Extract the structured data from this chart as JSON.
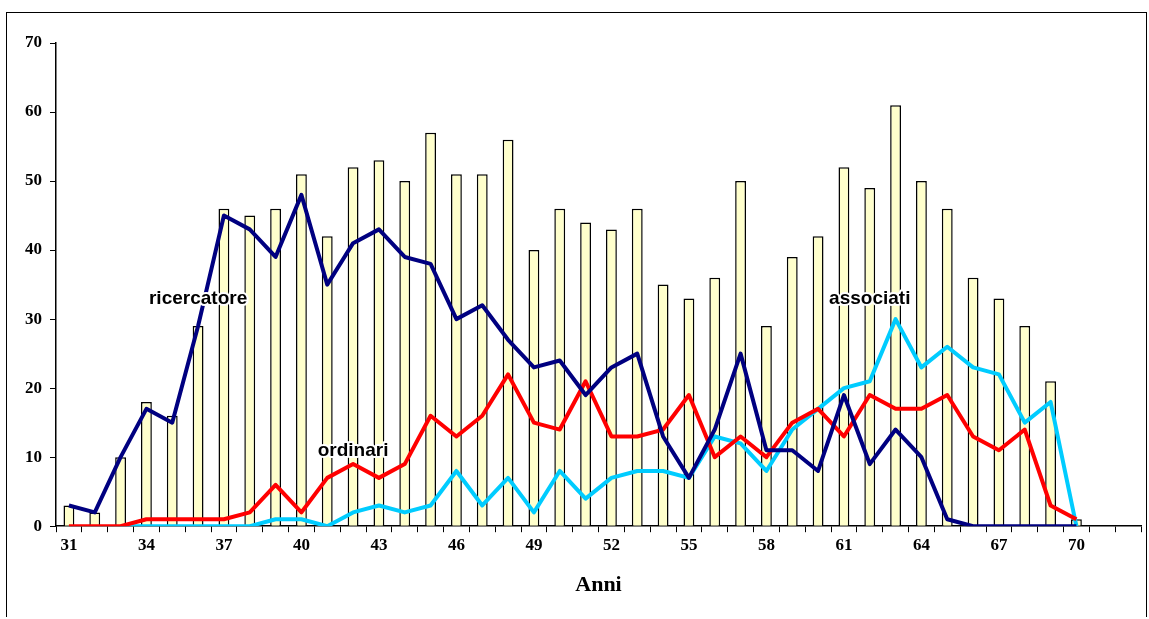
{
  "chart_data": {
    "type": "bar",
    "xlabel": "Anni",
    "categories": [
      "31",
      null,
      null,
      "34",
      null,
      null,
      "37",
      null,
      null,
      "40",
      null,
      null,
      "43",
      null,
      null,
      "46",
      null,
      null,
      "49",
      null,
      null,
      "52",
      null,
      null,
      "55",
      null,
      null,
      "58",
      null,
      null,
      "61",
      null,
      null,
      "64",
      null,
      null,
      "67",
      null,
      null,
      "70",
      null,
      null
    ],
    "series": [
      {
        "color": "#ffffcc",
        "values": [
          3,
          2,
          10,
          18,
          16,
          29,
          46,
          45,
          46,
          51,
          42,
          52,
          53,
          50,
          57,
          51,
          51,
          56,
          40,
          46,
          44,
          43,
          46,
          35,
          33,
          36,
          50,
          29,
          39,
          42,
          52,
          49,
          61,
          50,
          46,
          36,
          33,
          29,
          21,
          1,
          null,
          null
        ]
      },
      {
        "type": "line",
        "name": "ricercatore",
        "color": "#000080",
        "values": [
          3,
          2,
          10,
          17,
          15,
          29,
          45,
          43,
          39,
          48,
          35,
          41,
          43,
          39,
          38,
          30,
          32,
          27,
          23,
          24,
          19,
          23,
          25,
          13,
          7,
          14,
          25,
          11,
          11,
          8,
          19,
          9,
          14,
          10,
          1,
          0,
          0,
          0,
          0,
          0,
          null,
          null
        ]
      },
      {
        "type": "line",
        "name": "ordinari",
        "color": "#ff0000",
        "values": [
          0,
          0,
          0,
          1,
          1,
          1,
          1,
          2,
          6,
          2,
          7,
          9,
          7,
          9,
          16,
          13,
          16,
          22,
          15,
          14,
          21,
          13,
          13,
          14,
          19,
          10,
          13,
          10,
          15,
          17,
          13,
          19,
          17,
          17,
          19,
          13,
          11,
          14,
          3,
          1,
          null,
          null
        ]
      },
      {
        "type": "line",
        "name": "associati",
        "color": "#00ccff",
        "values": [
          null,
          null,
          0,
          0,
          0,
          0,
          0,
          0,
          1,
          1,
          0,
          2,
          3,
          2,
          3,
          8,
          3,
          7,
          2,
          8,
          4,
          7,
          8,
          8,
          7,
          13,
          12,
          8,
          14,
          17,
          20,
          21,
          30,
          23,
          26,
          23,
          22,
          15,
          18,
          0,
          null,
          null
        ]
      }
    ],
    "ylim": [
      0,
      70
    ],
    "yticks": [
      0,
      10,
      20,
      30,
      40,
      50,
      60,
      70
    ],
    "grid": false,
    "legend": false,
    "marker": "none",
    "line_style": "solid"
  }
}
